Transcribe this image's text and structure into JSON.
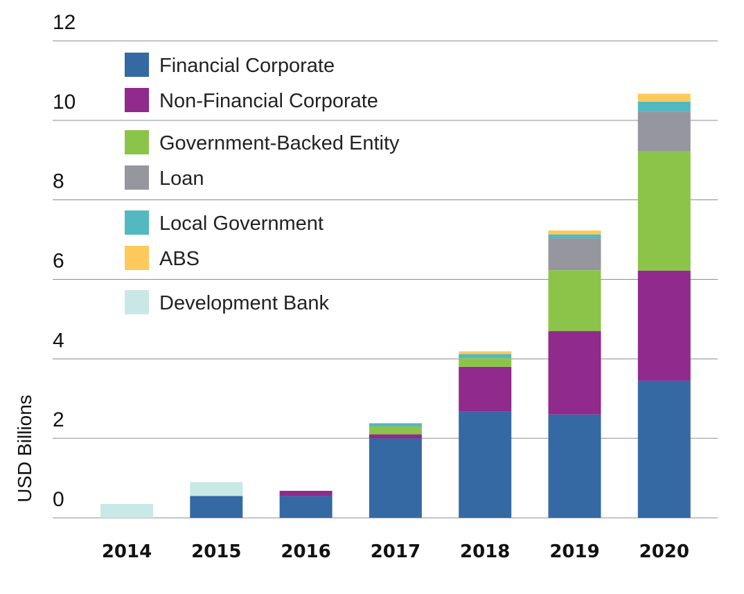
{
  "chart_data": {
    "type": "bar",
    "stacked": true,
    "title": "",
    "xlabel": "",
    "ylabel": "USD Billions",
    "ylim": [
      0,
      12
    ],
    "yticks": [
      0,
      2,
      4,
      6,
      8,
      10,
      12
    ],
    "grid": true,
    "legend_position": "top-left",
    "categories": [
      "2014",
      "2015",
      "2016",
      "2017",
      "2018",
      "2019",
      "2020"
    ],
    "series": [
      {
        "name": "Financial Corporate",
        "color": "#3569a3",
        "values": [
          0,
          0.55,
          0.55,
          2.0,
          2.67,
          2.6,
          3.45
        ]
      },
      {
        "name": "Non-Financial Corporate",
        "color": "#902a8c",
        "values": [
          0,
          0,
          0.13,
          0.1,
          1.13,
          2.1,
          2.77
        ]
      },
      {
        "name": "Government-Backed Entity",
        "color": "#8cc44a",
        "values": [
          0,
          0,
          0,
          0.2,
          0.22,
          1.53,
          3.0
        ]
      },
      {
        "name": "Loan",
        "color": "#96969f",
        "values": [
          0,
          0,
          0,
          0,
          0,
          0.8,
          1.0
        ]
      },
      {
        "name": "Local Government",
        "color": "#53b8c0",
        "values": [
          0,
          0,
          0,
          0.08,
          0.1,
          0.1,
          0.25
        ]
      },
      {
        "name": "ABS",
        "color": "#fdc95a",
        "values": [
          0,
          0,
          0,
          0,
          0.07,
          0.1,
          0.2
        ]
      },
      {
        "name": "Development Bank",
        "color": "#c8e8e5",
        "values": [
          0.35,
          0.35,
          0,
          0,
          0,
          0,
          0
        ]
      }
    ]
  }
}
